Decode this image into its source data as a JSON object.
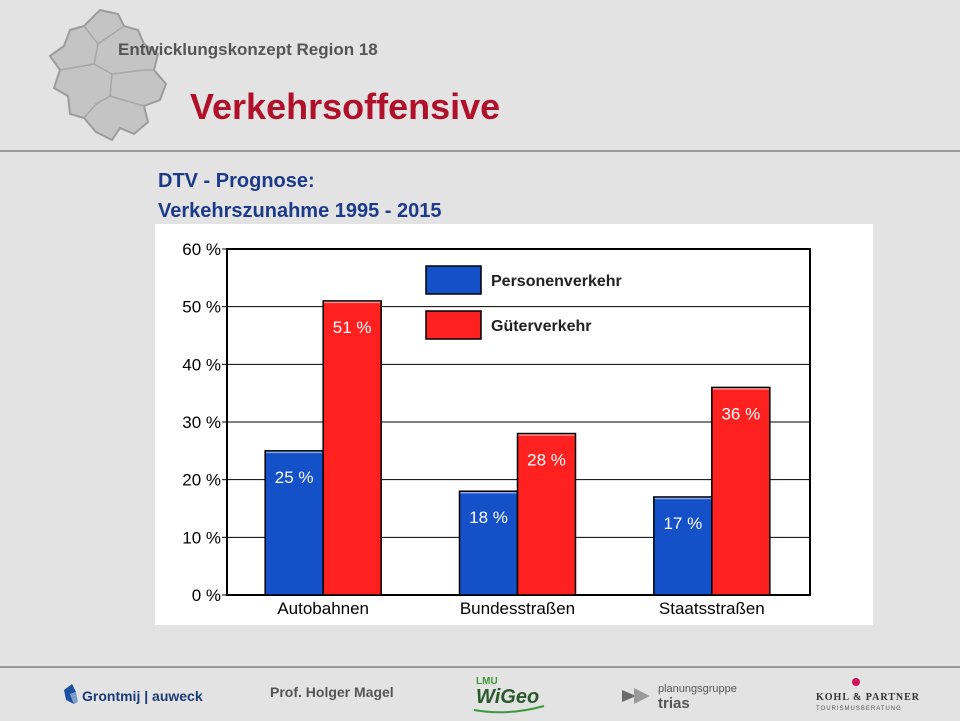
{
  "header": {
    "region_label": "Entwicklungskonzept Region 18",
    "title": "Verkehrsoffensive"
  },
  "subtitle": {
    "line1": "DTV - Prognose:",
    "line2": "Verkehrszunahme 1995 - 2015"
  },
  "chart_data": {
    "type": "bar",
    "categories": [
      "Autobahnen",
      "Bundesstraßen",
      "Staatsstraßen"
    ],
    "series": [
      {
        "name": "Personenverkehr",
        "values": [
          25,
          18,
          17
        ],
        "labels": [
          "25 %",
          "18 %",
          "17 %"
        ],
        "color": "#1450c8"
      },
      {
        "name": "Güterverkehr",
        "values": [
          51,
          28,
          36
        ],
        "labels": [
          "51 %",
          "28 %",
          "36 %"
        ],
        "color": "#ff2020"
      }
    ],
    "ylim": [
      0,
      60
    ],
    "yticks": [
      0,
      10,
      20,
      30,
      40,
      50,
      60
    ],
    "ytick_labels": [
      "0 %",
      "10 %",
      "20 %",
      "30 %",
      "40 %",
      "50 %",
      "60 %"
    ],
    "grid": true,
    "legend_position": "top-center"
  },
  "footer": {
    "author": "Prof. Holger Magel",
    "logos": {
      "grontmij": "Grontmij | auweck",
      "lmu": "LMU",
      "wigeo": "WiGeo",
      "planungsgruppe": "planungsgruppe",
      "trias": "trias",
      "kohl": "KOHL & PARTNER",
      "kohl_sub": "TOURISMUSBERATUNG"
    }
  }
}
